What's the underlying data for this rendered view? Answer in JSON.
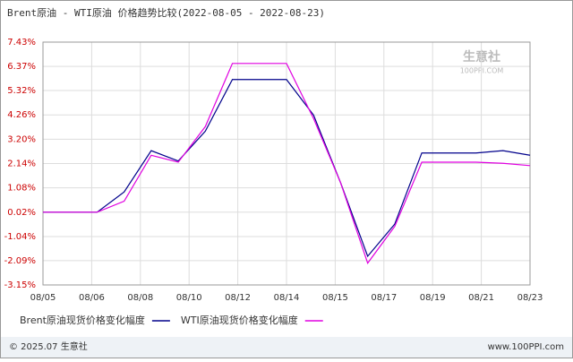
{
  "chart_data": {
    "type": "line",
    "title": "Brent原油 - WTI原油 价格趋势比较(2022-08-05 - 2022-08-23)",
    "watermark": {
      "name": "生意社",
      "site": "100PPI.COM"
    },
    "x_labels": [
      "08/05",
      "08/06",
      "08/08",
      "08/10",
      "08/12",
      "08/14",
      "08/15",
      "08/17",
      "08/19",
      "08/21",
      "08/23"
    ],
    "series": [
      {
        "name": "Brent原油现货价格变化幅度",
        "color": "#00008b",
        "values": [
          0.02,
          0.02,
          0.02,
          0.9,
          2.7,
          2.25,
          3.55,
          5.8,
          5.8,
          5.8,
          4.25,
          1.3,
          -1.9,
          -0.5,
          2.6,
          2.6,
          2.6,
          2.7,
          2.5
        ]
      },
      {
        "name": "WTI原油现货价格变化幅度",
        "color": "#e000e0",
        "values": [
          0.02,
          0.02,
          0.02,
          0.5,
          2.5,
          2.2,
          3.75,
          6.5,
          6.5,
          6.5,
          4.1,
          1.3,
          -2.2,
          -0.6,
          2.2,
          2.2,
          2.2,
          2.15,
          2.05
        ]
      }
    ],
    "ylim": [
      -3.15,
      7.43
    ],
    "yticks": [
      {
        "value": 7.43,
        "label": "7.43%"
      },
      {
        "value": 6.37,
        "label": "6.37%"
      },
      {
        "value": 5.32,
        "label": "5.32%"
      },
      {
        "value": 4.26,
        "label": "4.26%"
      },
      {
        "value": 3.2,
        "label": "3.20%"
      },
      {
        "value": 2.14,
        "label": "2.14%"
      },
      {
        "value": 1.08,
        "label": "1.08%"
      },
      {
        "value": 0.02,
        "label": "0.02%"
      },
      {
        "value": -1.04,
        "label": "-1.04%"
      },
      {
        "value": -2.09,
        "label": "-2.09%"
      },
      {
        "value": -3.15,
        "label": "-3.15%"
      }
    ],
    "grid": true,
    "footer": {
      "left": "© 2025.07 生意社",
      "right": "www.100PPI.com"
    }
  }
}
